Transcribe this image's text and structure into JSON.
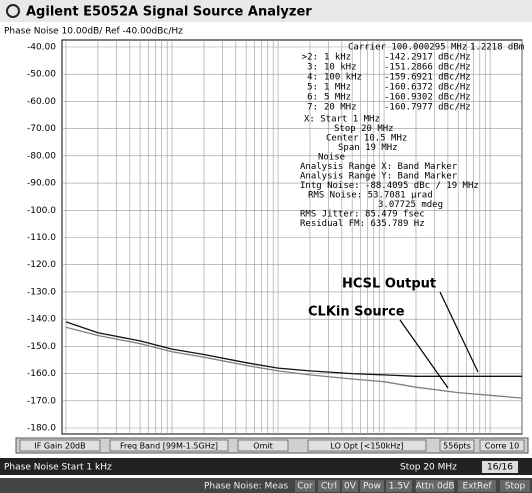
{
  "window": {
    "title": "Agilent E5052A Signal Source Analyzer"
  },
  "header": "Phase Noise 10.00dB/ Ref -40.00dBc/Hz",
  "chart_data": {
    "type": "line",
    "xlog": true,
    "grid": true,
    "xlim": [
      1000,
      20000000
    ],
    "ylim": [
      -180,
      -40
    ],
    "yticks": [
      {
        "value": -40,
        "label": "-40.00"
      },
      {
        "value": -50,
        "label": "-50.00"
      },
      {
        "value": -60,
        "label": "-60.00"
      },
      {
        "value": -70,
        "label": "-70.00"
      },
      {
        "value": -80,
        "label": "-80.00"
      },
      {
        "value": -90,
        "label": "-90.00"
      },
      {
        "value": -100,
        "label": "-100.0"
      },
      {
        "value": -110,
        "label": "-110.0"
      },
      {
        "value": -120,
        "label": "-120.0"
      },
      {
        "value": -130,
        "label": "-130.0"
      },
      {
        "value": -140,
        "label": "-140.0"
      },
      {
        "value": -150,
        "label": "-150.0"
      },
      {
        "value": -160,
        "label": "-160.0"
      },
      {
        "value": -170,
        "label": "-170.0"
      },
      {
        "value": -180,
        "label": "-180.0"
      }
    ],
    "xticks": [
      1000,
      2000,
      3000,
      4000,
      5000,
      6000,
      7000,
      8000,
      9000,
      10000,
      20000,
      30000,
      40000,
      50000,
      60000,
      70000,
      80000,
      90000,
      100000,
      200000,
      300000,
      400000,
      500000,
      600000,
      700000,
      800000,
      900000,
      1000000,
      2000000,
      3000000,
      4000000,
      5000000,
      6000000,
      7000000,
      8000000,
      9000000,
      10000000,
      20000000
    ],
    "x": [
      1000,
      2000,
      5000,
      10000,
      20000,
      50000,
      100000,
      200000,
      500000,
      1000000,
      2000000,
      5000000,
      10000000,
      20000000
    ],
    "series": [
      {
        "name": "HCSL Output",
        "color": "#111111",
        "values": [
          -141,
          -145,
          -148,
          -151,
          -153,
          -156,
          -158,
          -159,
          -160,
          -160.5,
          -161,
          -161,
          -161,
          -161
        ]
      },
      {
        "name": "CLKin Source",
        "color": "#808080",
        "values": [
          -143,
          -146,
          -149,
          -152,
          -154,
          -157,
          -159,
          -160.5,
          -162,
          -163,
          -165,
          -167,
          -168,
          -169
        ]
      }
    ]
  },
  "carrier": "Carrier 100.000295 MHz",
  "power": "1.2218 dBm",
  "markers": [
    [
      ">2:",
      "1 kHz",
      "-142.2917 dBc/Hz"
    ],
    [
      "3:",
      "10 kHz",
      "-151.2866 dBc/Hz"
    ],
    [
      "4:",
      "100 kHz",
      "-159.6921 dBc/Hz"
    ],
    [
      "5:",
      "1 MHz",
      "-160.6372 dBc/Hz"
    ],
    [
      "6:",
      "5 MHz",
      "-160.9302 dBc/Hz"
    ],
    [
      "7:",
      "20 MHz",
      "-160.7977 dBc/Hz"
    ]
  ],
  "readout": [
    "X: Start 1 MHz",
    "Stop 20 MHz",
    "Center 10.5 MHz",
    "Span 19 MHz",
    "Noise",
    "Analysis Range X: Band Marker",
    "Analysis Range Y: Band Marker",
    "Intg Noise: -88.4095 dBc / 19 MHz",
    "RMS Noise: 53.7081 µrad",
    "3.07725 mdeg",
    "RMS Jitter: 85.479 fsec",
    "Residual FM: 635.789 Hz"
  ],
  "softkeys": [
    "IF Gain 20dB",
    "Freq Band [99M-1.5GHz]",
    "Omit",
    "LO Opt [<150kHz]",
    "556pts",
    "Corre 10"
  ],
  "status": {
    "left": "Phase Noise  Start 1 kHz",
    "stop": "Stop 20 MHz",
    "count": "16/16"
  },
  "bottom": [
    "Phase Noise: Meas",
    "Cor",
    "Ctrl",
    "0V",
    "Pow",
    "1.5V",
    "Attn 0dB",
    "ExtRef",
    "Stop"
  ]
}
